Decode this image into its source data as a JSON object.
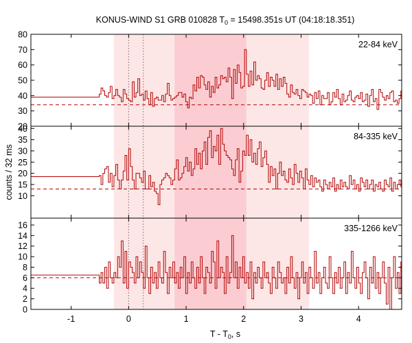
{
  "chart_data": {
    "type": "line",
    "title": "KONUS-WIND S1 GRB 010828 T0 = 15498.351s UT (04:18:18.351)",
    "title_parts": {
      "prefix": "KONUS-WIND S1 GRB 010828 T",
      "sub": "0",
      "suffix": " = 15498.351s UT (04:18:18.351)"
    },
    "xlabel": "T - T0, s",
    "xlabel_parts": {
      "prefix": "T - T",
      "sub": "0",
      "suffix": ", s"
    },
    "ylabel": "counts / 32 ms",
    "xlim": [
      -1.7,
      4.75
    ],
    "x_ticks": [
      -1,
      0,
      1,
      2,
      3,
      4
    ],
    "grid": false,
    "colors": {
      "series": "#b30000",
      "shade_light": "#fde6e6",
      "shade_dark": "#fbcdd2",
      "axis": "#000000"
    },
    "highlight_intervals": [
      {
        "from": -0.256,
        "to": 3.136,
        "level": "light"
      },
      {
        "from": 0.8,
        "to": 2.048,
        "level": "dark"
      }
    ],
    "marker_lines": [
      0,
      0.256
    ],
    "bin_width": 0.032,
    "panels": [
      {
        "label": "22-84 keV",
        "ylim": [
          20,
          80
        ],
        "y_ticks": [
          20,
          30,
          40,
          50,
          60,
          70,
          80
        ],
        "background": 34,
        "pre_level": 39,
        "start": -0.512,
        "values": [
          41,
          45,
          43,
          40,
          39,
          42,
          46,
          38,
          40,
          44,
          40,
          39,
          36,
          44,
          41,
          38,
          37,
          36,
          49,
          39,
          42,
          51,
          40,
          41,
          37,
          43,
          38,
          34,
          42,
          33,
          38,
          39,
          37,
          37,
          40,
          36,
          41,
          48,
          40,
          37,
          38,
          39,
          40,
          42,
          42,
          39,
          41,
          36,
          32,
          39,
          38,
          47,
          43,
          52,
          45,
          53,
          52,
          47,
          44,
          49,
          39,
          46,
          42,
          52,
          45,
          47,
          53,
          51,
          52,
          49,
          58,
          52,
          38,
          57,
          48,
          60,
          55,
          45,
          46,
          70,
          54,
          46,
          56,
          47,
          62,
          50,
          53,
          51,
          45,
          44,
          50,
          55,
          46,
          52,
          50,
          46,
          54,
          44,
          51,
          46,
          52,
          48,
          41,
          39,
          47,
          42,
          41,
          44,
          40,
          38,
          44,
          43,
          42,
          39,
          41,
          40,
          35,
          42,
          38,
          43,
          34,
          40,
          38,
          38,
          42,
          34,
          36,
          42,
          39,
          44,
          38,
          34,
          41,
          36,
          37,
          40,
          43,
          37,
          36,
          39,
          40,
          38,
          42,
          36,
          37,
          41,
          33,
          40,
          44,
          36,
          38,
          31,
          44,
          42,
          39,
          37,
          40,
          38,
          42,
          43,
          36,
          37,
          35,
          38,
          43,
          37,
          36,
          40,
          39,
          42,
          45,
          38,
          37,
          37,
          41,
          37,
          43,
          38,
          42,
          36,
          40,
          45
        ]
      },
      {
        "label": "84-335 keV",
        "ylim": [
          0,
          41
        ],
        "y_ticks": [
          10,
          15,
          20,
          25,
          30,
          35,
          40
        ],
        "background": 13,
        "pre_level": 18.5,
        "start": -0.512,
        "values": [
          19,
          15,
          20,
          22,
          23,
          16,
          20,
          14,
          19,
          24,
          17,
          13,
          17,
          21,
          28,
          17,
          31,
          23,
          17,
          13,
          20,
          20,
          18,
          16,
          21,
          13,
          13,
          19,
          14,
          16,
          12,
          11,
          6,
          15,
          17,
          18,
          20,
          19,
          18,
          15,
          17,
          22,
          26,
          17,
          18,
          20,
          23,
          27,
          21,
          25,
          19,
          22,
          31,
          24,
          29,
          22,
          30,
          34,
          24,
          36,
          39,
          27,
          32,
          30,
          37,
          24,
          40,
          33,
          30,
          28,
          27,
          26,
          22,
          19,
          26,
          31,
          16,
          21,
          30,
          28,
          37,
          28,
          35,
          25,
          29,
          24,
          31,
          34,
          23,
          27,
          30,
          24,
          16,
          23,
          19,
          22,
          13,
          20,
          25,
          19,
          21,
          17,
          16,
          22,
          18,
          15,
          24,
          20,
          16,
          21,
          18,
          13,
          22,
          17,
          15,
          19,
          14,
          18,
          16,
          17,
          14,
          12,
          17,
          15,
          13,
          16,
          14,
          18,
          12,
          15,
          13,
          17,
          14,
          16,
          14,
          13,
          19,
          15,
          17,
          13,
          15,
          12,
          18,
          16,
          14,
          17,
          13,
          15,
          17,
          12,
          15,
          14,
          16,
          13,
          12,
          17,
          15,
          14,
          18,
          12,
          16,
          13,
          15,
          17,
          14,
          13,
          16,
          18,
          12,
          14,
          15,
          13,
          17,
          14,
          16,
          12,
          15,
          14,
          13,
          16,
          14,
          15
        ]
      },
      {
        "label": "335-1266 keV",
        "ylim": [
          0,
          17.3
        ],
        "y_ticks": [
          0,
          2,
          4,
          6,
          8,
          10,
          12,
          14,
          16
        ],
        "background": 6,
        "pre_level": 6.5,
        "start": -0.512,
        "values": [
          5,
          7,
          5,
          8,
          4,
          9,
          6,
          5,
          7,
          6,
          10,
          8,
          13,
          5,
          11,
          4,
          9,
          8,
          7,
          5,
          10,
          6,
          9,
          7,
          4,
          12,
          6,
          3,
          8,
          5,
          7,
          4,
          9,
          6,
          5,
          11,
          7,
          3,
          8,
          6,
          9,
          5,
          7,
          4,
          8,
          6,
          10,
          3,
          7,
          5,
          9,
          6,
          4,
          8,
          5,
          10,
          6,
          3,
          8,
          7,
          5,
          11,
          9,
          4,
          13,
          6,
          8,
          7,
          3,
          10,
          5,
          7,
          14,
          6,
          9,
          4,
          8,
          6,
          10,
          5,
          7,
          4,
          9,
          2,
          7,
          5,
          8,
          6,
          4,
          9,
          6,
          7,
          5,
          3,
          8,
          6,
          4,
          9,
          7,
          5,
          6,
          3,
          8,
          5,
          10,
          6,
          4,
          7,
          2,
          6,
          9,
          5,
          7,
          3,
          8,
          6,
          4,
          11,
          5,
          7,
          3,
          6,
          8,
          5,
          4,
          10,
          6,
          3,
          7,
          5,
          8,
          4,
          6,
          9,
          3,
          7,
          5,
          11,
          6,
          4,
          8,
          5,
          3,
          7,
          9,
          6,
          2,
          8,
          5,
          10,
          4,
          7,
          3,
          6,
          9,
          5,
          1,
          8,
          0,
          6,
          10,
          4,
          7,
          3,
          9,
          5,
          6,
          2,
          7,
          4,
          8,
          6,
          3,
          10,
          5,
          7,
          4,
          6,
          2,
          8,
          5,
          6
        ]
      }
    ]
  }
}
